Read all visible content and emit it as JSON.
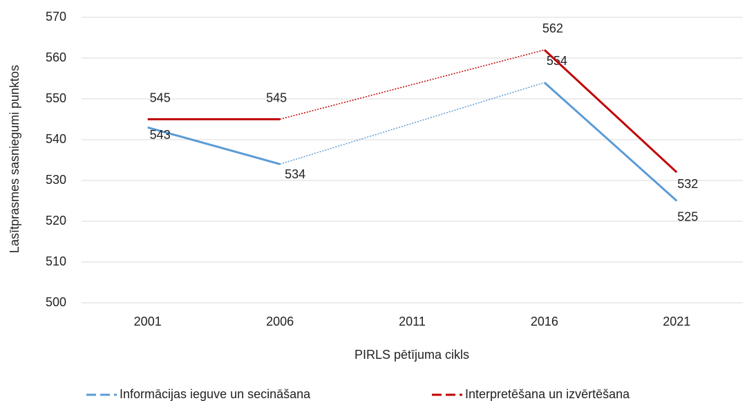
{
  "chart_data": {
    "type": "line",
    "y_label": "Lasītprasmes sasniegumi punktos",
    "x_label": "PIRLS pētījuma cikls",
    "categories": [
      "2001",
      "2006",
      "2011",
      "2016",
      "2021"
    ],
    "series": [
      {
        "name": "Informācijas ieguve un secināšana",
        "color": "#5b9bd5",
        "values": [
          543,
          534,
          null,
          554,
          525
        ]
      },
      {
        "name": "Interpretēšana un izvērtēšana",
        "color": "#c00000",
        "values": [
          545,
          545,
          null,
          562,
          532
        ]
      }
    ],
    "ylim": [
      500,
      570
    ],
    "yticks": [
      500,
      510,
      520,
      530,
      540,
      550,
      560,
      570
    ],
    "grid": true,
    "legend": "bottom"
  }
}
